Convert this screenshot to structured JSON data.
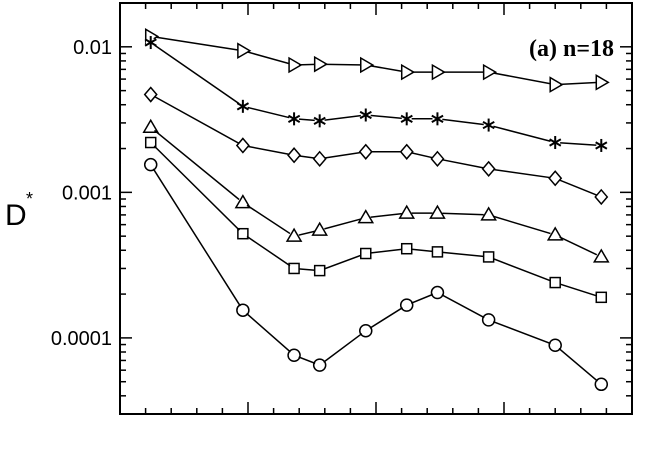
{
  "chart_data": {
    "type": "line",
    "yscale": "log",
    "ylim": [
      3e-05,
      0.02
    ],
    "xlim": [
      0,
      1
    ],
    "ylabel": "D",
    "ylabel_superscript": "*",
    "annotation": "(a)  n=18",
    "grid": false,
    "y_tick_labels": [
      {
        "value": 0.01,
        "label": "0.01"
      },
      {
        "value": 0.001,
        "label": "0.001"
      },
      {
        "value": 0.0001,
        "label": "0.0001"
      }
    ],
    "x": [
      0.06,
      0.24,
      0.34,
      0.39,
      0.48,
      0.56,
      0.62,
      0.72,
      0.85,
      0.94
    ],
    "series": [
      {
        "marker": "triangle-right",
        "values": [
          0.0118,
          0.0094,
          0.0075,
          0.0076,
          0.0075,
          0.0067,
          0.0067,
          0.0067,
          0.0055,
          0.0057
        ]
      },
      {
        "marker": "asterisk",
        "values": [
          0.0107,
          0.0039,
          0.0032,
          0.0031,
          0.0034,
          0.0032,
          0.0032,
          0.0029,
          0.0022,
          0.0021
        ]
      },
      {
        "marker": "diamond",
        "values": [
          0.0047,
          0.0021,
          0.0018,
          0.0017,
          0.0019,
          0.0019,
          0.0017,
          0.00145,
          0.00125,
          0.00093
        ]
      },
      {
        "marker": "triangle-up",
        "values": [
          0.0028,
          0.00085,
          0.0005,
          0.00055,
          0.00067,
          0.00072,
          0.00072,
          0.0007,
          0.00051,
          0.00036
        ]
      },
      {
        "marker": "square",
        "values": [
          0.0022,
          0.00052,
          0.0003,
          0.00029,
          0.00038,
          0.00041,
          0.00039,
          0.00036,
          0.00024,
          0.00019
        ]
      },
      {
        "marker": "circle",
        "values": [
          0.00155,
          0.000155,
          7.6e-05,
          6.5e-05,
          0.000112,
          0.000168,
          0.000205,
          0.000133,
          8.9e-05,
          4.8e-05
        ]
      }
    ]
  }
}
